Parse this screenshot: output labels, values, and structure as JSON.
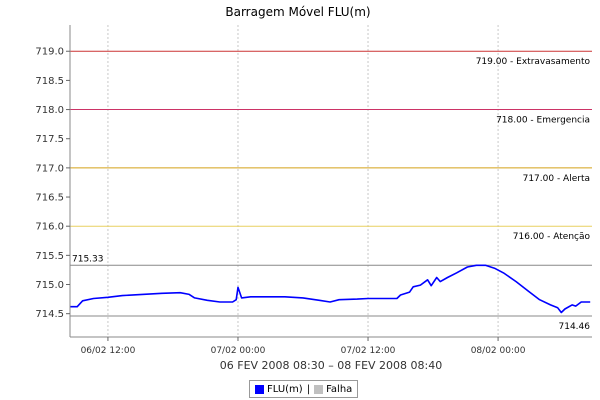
{
  "chart_data": {
    "type": "line",
    "title": "Barragem Móvel FLU(m)",
    "xlabel": "06 FEV 2008 08:30 – 08 FEV 2008 08:40",
    "ylabel": "",
    "ylim": [
      714.1,
      719.45
    ],
    "xlim": [
      "2008-02-06 08:30",
      "2008-02-08 08:40"
    ],
    "y_ticks": [
      "714.5",
      "715.0",
      "715.5",
      "716.0",
      "716.5",
      "717.0",
      "717.5",
      "718.0",
      "718.5",
      "719.0"
    ],
    "x_ticks": [
      {
        "t": "2008-02-06 12:00",
        "label": "06/02 12:00"
      },
      {
        "t": "2008-02-07 00:00",
        "label": "07/02 00:00"
      },
      {
        "t": "2008-02-07 12:00",
        "label": "07/02 12:00"
      },
      {
        "t": "2008-02-08 00:00",
        "label": "08/02 00:00"
      }
    ],
    "grid": "vertical",
    "legend_position": "bottom",
    "thresholds": [
      {
        "value": 719.0,
        "label": "719.00 - Extravasamento",
        "color": "#cc3333"
      },
      {
        "value": 718.0,
        "label": "718.00 - Emergencia",
        "color": "#cc3366"
      },
      {
        "value": 717.0,
        "label": "717.00 - Alerta",
        "color": "#d4a017"
      },
      {
        "value": 716.0,
        "label": "716.00 - Atenção",
        "color": "#e8d060"
      }
    ],
    "markers": [
      {
        "value": 715.33,
        "label": "715.33",
        "label_side": "left"
      },
      {
        "value": 714.46,
        "label": "714.46",
        "label_side": "right"
      }
    ],
    "series": [
      {
        "name": "FLU(m)",
        "color": "#0000ff",
        "points": [
          [
            "2008-02-06 08:30",
            714.62
          ],
          [
            "2008-02-06 09:10",
            714.62
          ],
          [
            "2008-02-06 09:40",
            714.72
          ],
          [
            "2008-02-06 10:40",
            714.76
          ],
          [
            "2008-02-06 12:00",
            714.78
          ],
          [
            "2008-02-06 13:20",
            714.81
          ],
          [
            "2008-02-06 15:10",
            714.83
          ],
          [
            "2008-02-06 17:00",
            714.85
          ],
          [
            "2008-02-06 18:40",
            714.86
          ],
          [
            "2008-02-06 19:30",
            714.83
          ],
          [
            "2008-02-06 20:00",
            714.77
          ],
          [
            "2008-02-06 21:10",
            714.73
          ],
          [
            "2008-02-06 22:20",
            714.7
          ],
          [
            "2008-02-06 23:30",
            714.7
          ],
          [
            "2008-02-06 23:50",
            714.74
          ],
          [
            "2008-02-07 00:00",
            714.95
          ],
          [
            "2008-02-07 00:20",
            714.77
          ],
          [
            "2008-02-07 01:10",
            714.79
          ],
          [
            "2008-02-07 02:40",
            714.79
          ],
          [
            "2008-02-07 04:20",
            714.79
          ],
          [
            "2008-02-07 06:00",
            714.77
          ],
          [
            "2008-02-07 07:30",
            714.73
          ],
          [
            "2008-02-07 08:30",
            714.7
          ],
          [
            "2008-02-07 09:20",
            714.74
          ],
          [
            "2008-02-07 11:00",
            714.75
          ],
          [
            "2008-02-07 12:00",
            714.76
          ],
          [
            "2008-02-07 13:10",
            714.76
          ],
          [
            "2008-02-07 14:40",
            714.76
          ],
          [
            "2008-02-07 15:00",
            714.82
          ],
          [
            "2008-02-07 15:50",
            714.87
          ],
          [
            "2008-02-07 16:10",
            714.96
          ],
          [
            "2008-02-07 16:50",
            714.99
          ],
          [
            "2008-02-07 17:30",
            715.08
          ],
          [
            "2008-02-07 17:50",
            714.98
          ],
          [
            "2008-02-07 18:20",
            715.12
          ],
          [
            "2008-02-07 18:40",
            715.05
          ],
          [
            "2008-02-07 19:20",
            715.12
          ],
          [
            "2008-02-07 20:10",
            715.2
          ],
          [
            "2008-02-07 21:10",
            715.3
          ],
          [
            "2008-02-07 22:00",
            715.33
          ],
          [
            "2008-02-07 22:50",
            715.33
          ],
          [
            "2008-02-07 23:40",
            715.28
          ],
          [
            "2008-02-08 00:30",
            715.2
          ],
          [
            "2008-02-08 01:40",
            715.05
          ],
          [
            "2008-02-08 02:50",
            714.88
          ],
          [
            "2008-02-08 03:50",
            714.74
          ],
          [
            "2008-02-08 04:50",
            714.65
          ],
          [
            "2008-02-08 05:30",
            714.6
          ],
          [
            "2008-02-08 05:50",
            714.52
          ],
          [
            "2008-02-08 06:10",
            714.58
          ],
          [
            "2008-02-08 06:50",
            714.65
          ],
          [
            "2008-02-08 07:10",
            714.63
          ],
          [
            "2008-02-08 07:40",
            714.7
          ],
          [
            "2008-02-08 08:30",
            714.7
          ]
        ]
      },
      {
        "name": "Falha",
        "color": "#c0c0c0",
        "points": []
      }
    ]
  }
}
